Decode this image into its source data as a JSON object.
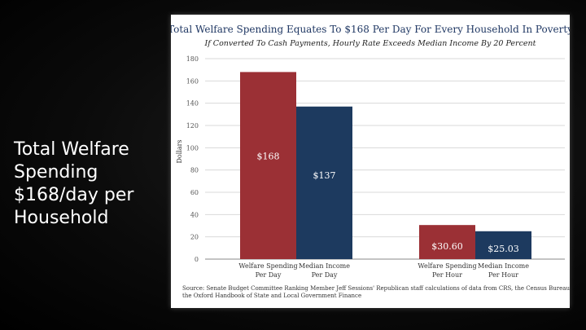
{
  "slide": {
    "title": "Total Welfare\nSpending\n$168/day per\nHousehold"
  },
  "chart_data": {
    "type": "bar",
    "title": "Total Welfare Spending Equates To $168 Per Day For Every Household In Poverty",
    "subtitle": "If Converted To Cash Payments, Hourly Rate Exceeds Median Income By 20 Percent",
    "ylabel": "Dollars",
    "xlabel": "",
    "ylim": [
      0,
      180
    ],
    "yticks": [
      0,
      20,
      40,
      60,
      80,
      100,
      120,
      140,
      160,
      180
    ],
    "grid": true,
    "bars": [
      {
        "label": "Welfare Spending Per Day",
        "label_lines": [
          "Welfare Spending",
          "Per Day"
        ],
        "value": 168,
        "display": "$168",
        "color": "#9b3035"
      },
      {
        "label": "Median Income Per Day",
        "label_lines": [
          "Median Income",
          "Per Day"
        ],
        "value": 137,
        "display": "$137",
        "color": "#1d3a5f"
      },
      {
        "label": "Welfare Spending Per Hour",
        "label_lines": [
          "Welfare Spending",
          "Per Hour"
        ],
        "value": 30.6,
        "display": "$30.60",
        "color": "#9b3035"
      },
      {
        "label": "Median Income Per Hour",
        "label_lines": [
          "Median Income",
          "Per Hour"
        ],
        "value": 25.03,
        "display": "$25.03",
        "color": "#1d3a5f"
      }
    ],
    "source": "Source: Senate Budget Committee Ranking Member Jeff Sessions' Republican staff calculations of data from CRS, the Census Bureau, and the Oxford Handbook of State and Local Government Finance",
    "source_lines": [
      "Source: Senate Budget Committee Ranking Member Jeff Sessions' Republican staff calculations of data from CRS, the Census Bureau, and",
      "the Oxford Handbook of State and Local Government Finance"
    ]
  }
}
